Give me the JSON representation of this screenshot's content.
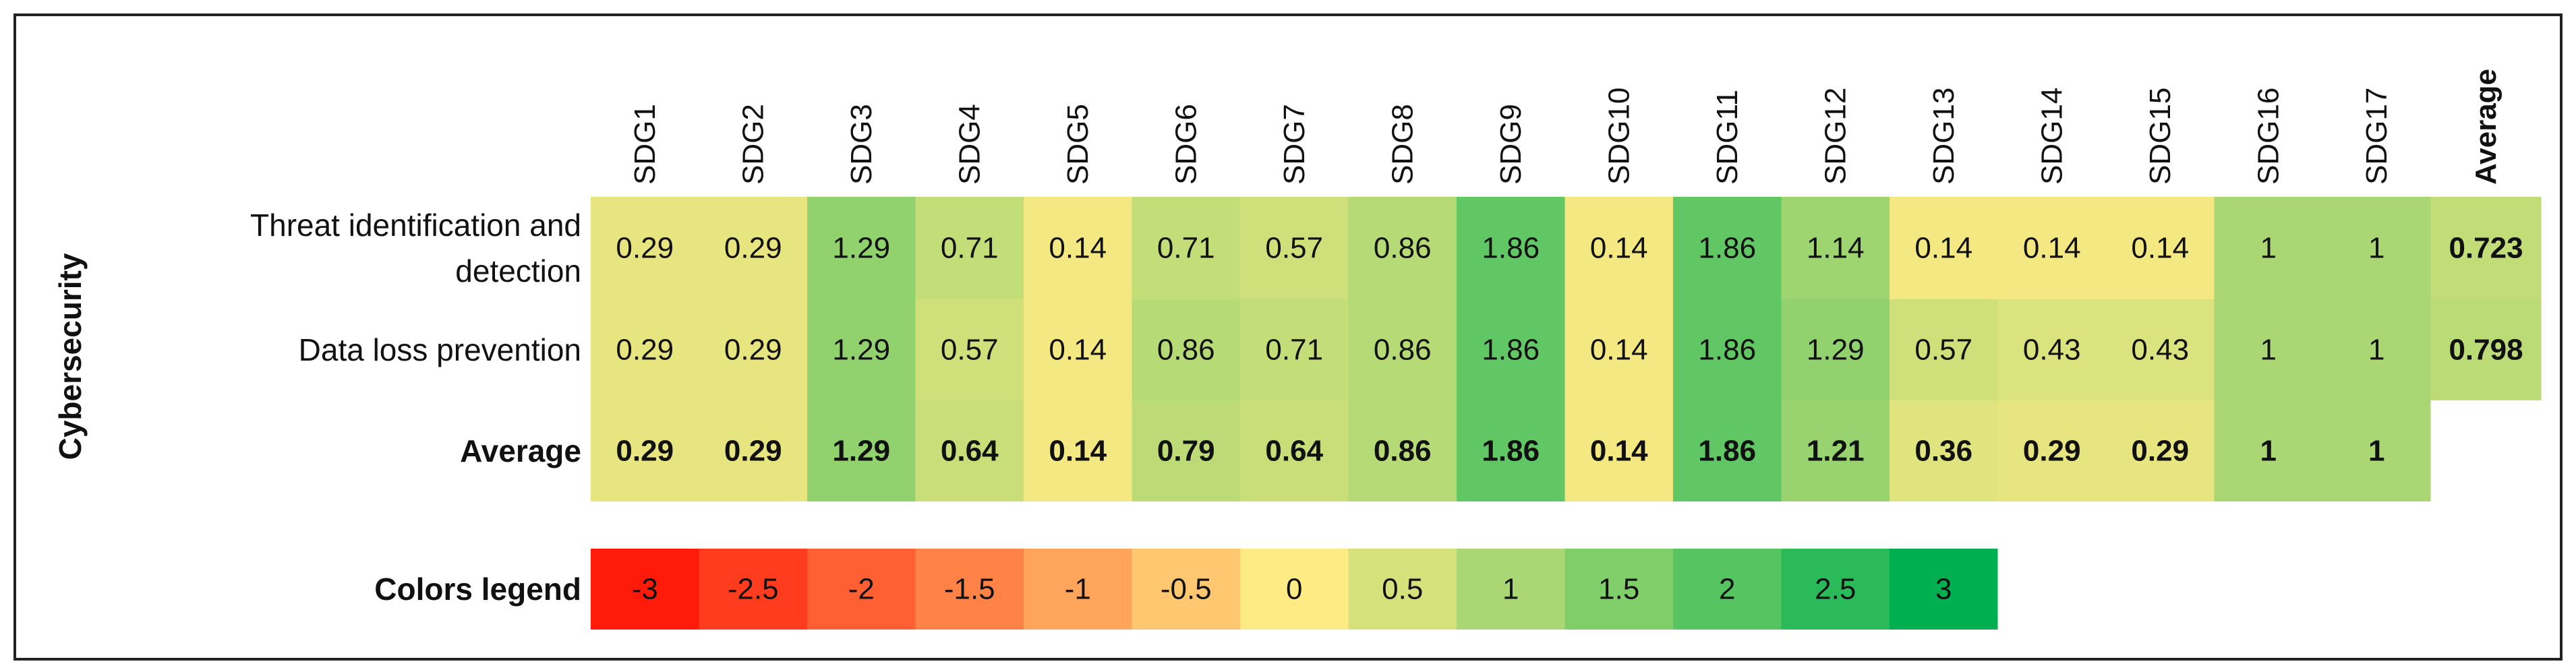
{
  "chart_data": {
    "type": "heatmap",
    "title": "",
    "group_label": "Cybersecurity",
    "columns": [
      "SDG1",
      "SDG2",
      "SDG3",
      "SDG4",
      "SDG5",
      "SDG6",
      "SDG7",
      "SDG8",
      "SDG9",
      "SDG10",
      "SDG11",
      "SDG12",
      "SDG13",
      "SDG14",
      "SDG15",
      "SDG16",
      "SDG17"
    ],
    "average_column_label": "Average",
    "rows": [
      {
        "label": [
          "Threat identification and",
          "detection"
        ],
        "values": [
          "0.29",
          "0.29",
          "1.29",
          "0.71",
          "0.14",
          "0.71",
          "0.57",
          "0.86",
          "1.86",
          "0.14",
          "1.86",
          "1.14",
          "0.14",
          "0.14",
          "0.14",
          "1",
          "1"
        ],
        "average": "0.723"
      },
      {
        "label": [
          "Data loss prevention"
        ],
        "values": [
          "0.29",
          "0.29",
          "1.29",
          "0.57",
          "0.14",
          "0.86",
          "0.71",
          "0.86",
          "1.86",
          "0.14",
          "1.86",
          "1.29",
          "0.57",
          "0.43",
          "0.43",
          "1",
          "1"
        ],
        "average": "0.798"
      }
    ],
    "average_row": {
      "label": "Average",
      "values": [
        "0.29",
        "0.29",
        "1.29",
        "0.64",
        "0.14",
        "0.79",
        "0.64",
        "0.86",
        "1.86",
        "0.14",
        "1.86",
        "1.21",
        "0.36",
        "0.29",
        "0.29",
        "1",
        "1"
      ]
    },
    "legend": {
      "label": "Colors legend",
      "values": [
        "-3",
        "-2.5",
        "-2",
        "-1.5",
        "-1",
        "-0.5",
        "0",
        "0.5",
        "1",
        "1.5",
        "2",
        "2.5",
        "3"
      ]
    },
    "color_scale": {
      "min": -3,
      "mid": 0,
      "max": 3,
      "min_color": "#ff1a0a",
      "mid_color": "#ffeb84",
      "max_color": "#00b050"
    }
  }
}
